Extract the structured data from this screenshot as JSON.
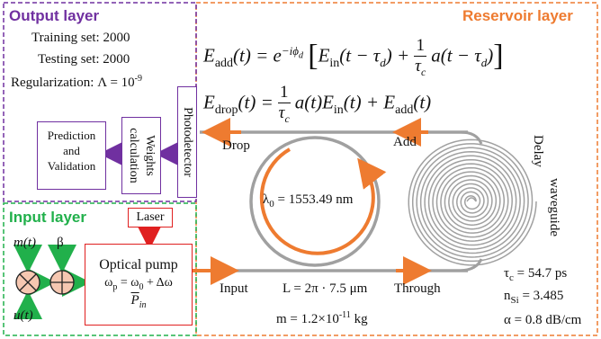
{
  "output_layer": {
    "title": "Output layer",
    "training": "Training set: 2000",
    "testing": "Testing set: 2000",
    "regularization": "Regularization: Λ = 10",
    "regularization_exp": "-9",
    "prediction_line1": "Prediction",
    "prediction_line2": "and",
    "prediction_line3": "Validation",
    "weights_line1": "Weights",
    "weights_line2": "calculation",
    "photodetector": "Photodetector"
  },
  "reservoir_layer": {
    "title": "Reservoir layer",
    "drop": "Drop",
    "add": "Add",
    "input": "Input",
    "through": "Through",
    "lambda": "λ",
    "lambda_sub": "0",
    "lambda_val": " = 1553.49 nm",
    "length": "L = 2π · 7.5 μm",
    "mass": "m = 1.2×10",
    "mass_exp": "-11",
    "mass_unit": " kg",
    "delay_line1": "Delay",
    "delay_line2": "waveguide",
    "tau_c": "τ",
    "tau_c_sub": "c",
    "tau_c_val": " = 54.7 ps",
    "n_si": "n",
    "n_si_sub": "Si",
    "n_si_val": " = 3.485",
    "alpha": "α = 0.8 dB/cm"
  },
  "input_layer": {
    "title": "Input layer",
    "laser": "Laser",
    "m_t": "m(t)",
    "u_t": "u(t)",
    "beta": "β",
    "pump_title": "Optical pump",
    "omega_p": "ω",
    "omega_p_sub": "p",
    "omega_rest": " = ω",
    "omega_0_sub": "0",
    "omega_delta": " + Δω",
    "p_in": "P",
    "p_in_sub": "in"
  },
  "colors": {
    "orange": "#ee7b30",
    "purple": "#7030a0",
    "green": "#21b04b",
    "red": "#e02020",
    "ring": "#9a9a9a"
  }
}
